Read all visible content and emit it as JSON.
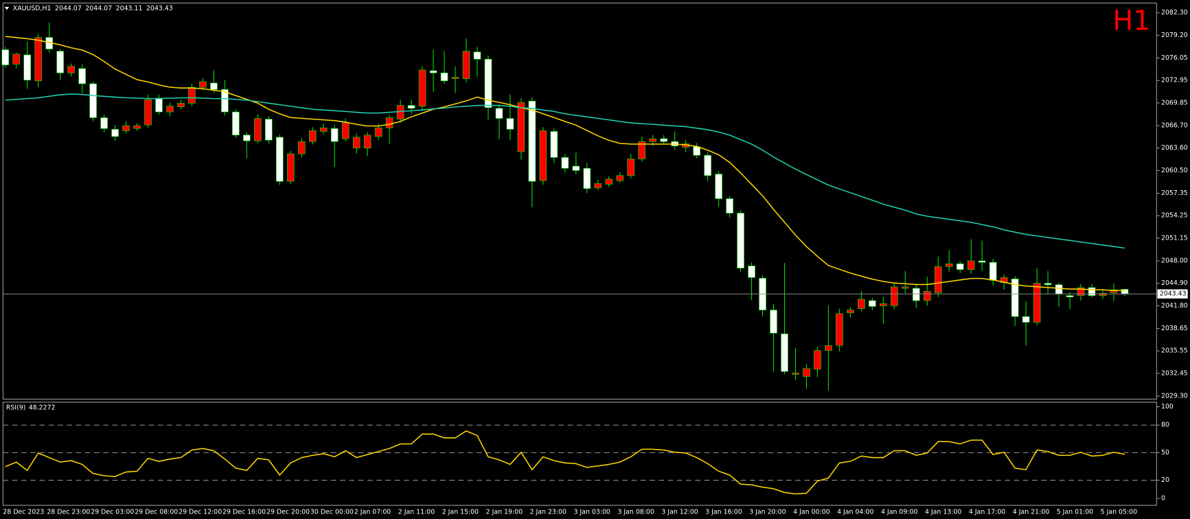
{
  "chart_data": [
    {
      "type": "candlestick",
      "title": "XAUUSD,H1",
      "watermark": "H1",
      "up_color": "#ff0000",
      "down_color": "#ffffff",
      "wick_color": "#00e000",
      "categories": [
        "28 Dec 2023",
        null,
        null,
        null,
        "28 Dec 23:00",
        null,
        null,
        null,
        "29 Dec 03:00",
        null,
        null,
        null,
        "29 Dec 08:00",
        null,
        null,
        null,
        "29 Dec 12:00",
        null,
        null,
        null,
        "29 Dec 16:00",
        null,
        null,
        null,
        "29 Dec 20:00",
        null,
        null,
        null,
        "30 Dec 00:00",
        null,
        null,
        null,
        "2 Jan 07:00",
        null,
        null,
        null,
        "2 Jan 11:00",
        null,
        null,
        null,
        "2 Jan 15:00",
        null,
        null,
        null,
        "2 Jan 19:00",
        null,
        null,
        null,
        "2 Jan 23:00",
        null,
        null,
        null,
        "3 Jan 03:00",
        null,
        null,
        null,
        "3 Jan 08:00",
        null,
        null,
        null,
        "3 Jan 12:00",
        null,
        null,
        null,
        "3 Jan 16:00",
        null,
        null,
        null,
        "3 Jan 20:00",
        null,
        null,
        null,
        "4 Jan 00:00",
        null,
        null,
        null,
        "4 Jan 04:00",
        null,
        null,
        null,
        "4 Jan 09:00",
        null,
        null,
        null,
        "4 Jan 13:00",
        null,
        null,
        null,
        "4 Jan 17:00",
        null,
        null,
        null,
        "4 Jan 21:00",
        null,
        null,
        null,
        "5 Jan 01:00",
        null,
        null,
        null,
        "5 Jan 05:00",
        null,
        null
      ],
      "open": [
        2077.2,
        2075.2,
        2076.5,
        2072.9,
        2078.9,
        2077.0,
        2074.0,
        2074.6,
        2072.5,
        2067.8,
        2066.2,
        2066.0,
        2066.3,
        2066.8,
        2070.5,
        2068.6,
        2069.3,
        2069.8,
        2072.0,
        2072.6,
        2071.7,
        2068.6,
        2065.4,
        2064.6,
        2067.6,
        2065.1,
        2059.0,
        2062.8,
        2064.5,
        2065.9,
        2066.3,
        2064.9,
        2063.6,
        2063.6,
        2065.2,
        2066.4,
        2067.6,
        2069.5,
        2069.4,
        2074.3,
        2074.0,
        2073.2,
        2073.2,
        2076.9,
        2075.9,
        2069.1,
        2067.7,
        2063.1,
        2070.1,
        2059.1,
        2065.9,
        2062.3,
        2061.1,
        2060.8,
        2058.1,
        2058.6,
        2059.1,
        2059.8,
        2062.1,
        2064.5,
        2064.9,
        2064.5,
        2063.7,
        2063.8,
        2062.6,
        2060.0,
        2056.6,
        2054.6,
        2047.3,
        2045.6,
        2041.2,
        2037.9,
        2032.3,
        2032.0,
        2033.0,
        2035.6,
        2036.3,
        2040.8,
        2041.4,
        2042.5,
        2041.8,
        2041.8,
        2044.2,
        2044.2,
        2042.5,
        2043.6,
        2047.2,
        2047.6,
        2046.8,
        2048.0,
        2047.8,
        2045.0,
        2045.5,
        2040.3,
        2039.5,
        2044.9,
        2044.7,
        2043.2,
        2043.2,
        2044.3,
        2043.2,
        2043.6,
        2044.07
      ],
      "high": [
        2077.6,
        2076.8,
        2078.3,
        2079.4,
        2081.0,
        2077.3,
        2075.3,
        2075.2,
        2072.8,
        2068.2,
        2066.8,
        2067.3,
        2067.0,
        2071.0,
        2071.0,
        2069.9,
        2070.3,
        2072.5,
        2073.3,
        2074.4,
        2073.0,
        2069.0,
        2065.8,
        2068.3,
        2068.0,
        2065.5,
        2063.2,
        2065.0,
        2066.5,
        2067.0,
        2066.8,
        2067.7,
        2065.6,
        2065.8,
        2067.0,
        2068.2,
        2070.3,
        2070.3,
        2074.9,
        2077.2,
        2077.0,
        2074.9,
        2078.8,
        2077.6,
        2076.4,
        2069.6,
        2071.0,
        2070.5,
        2070.6,
        2066.5,
        2066.3,
        2062.8,
        2063.0,
        2061.5,
        2059.2,
        2059.7,
        2060.3,
        2062.8,
        2065.2,
        2065.4,
        2065.4,
        2065.9,
        2064.7,
        2064.3,
        2063.0,
        2060.4,
        2057.0,
        2055.0,
        2047.8,
        2046.0,
        2042.0,
        2047.7,
        2036.0,
        2033.8,
        2036.1,
        2041.8,
        2041.4,
        2041.6,
        2043.8,
        2042.9,
        2043.0,
        2045.0,
        2046.6,
        2044.8,
        2045.8,
        2048.6,
        2049.5,
        2048.0,
        2051.0,
        2050.8,
        2048.3,
        2046.1,
        2045.9,
        2042.4,
        2047.0,
        2046.6,
        2045.0,
        2043.7,
        2044.8,
        2044.8,
        2044.0,
        2044.9,
        2044.07
      ],
      "low": [
        2074.7,
        2074.6,
        2071.8,
        2072.0,
        2076.8,
        2073.0,
        2073.5,
        2071.2,
        2067.3,
        2065.8,
        2064.6,
        2065.6,
        2066.0,
        2066.4,
        2068.2,
        2068.0,
        2069.0,
        2069.4,
        2071.6,
        2071.2,
        2068.1,
        2065.0,
        2062.2,
        2064.2,
        2064.2,
        2058.5,
        2058.6,
        2062.3,
        2064.1,
        2065.5,
        2061.0,
        2064.5,
        2062.8,
        2062.5,
        2064.7,
        2064.2,
        2067.1,
        2068.3,
        2068.9,
        2071.4,
        2072.5,
        2071.2,
        2072.7,
        2073.5,
        2067.5,
        2064.8,
        2064.7,
        2062.0,
        2055.4,
        2058.5,
        2061.5,
        2060.2,
        2060.0,
        2057.4,
        2057.8,
        2058.2,
        2058.8,
        2059.4,
        2061.7,
        2063.9,
        2064.1,
        2063.4,
        2063.0,
        2062.2,
        2059.0,
        2055.5,
        2054.0,
        2046.5,
        2042.6,
        2040.3,
        2032.7,
        2032.3,
        2031.5,
        2030.3,
        2031.9,
        2030.1,
        2035.5,
        2040.2,
        2041.0,
        2041.2,
        2039.3,
        2041.3,
        2043.5,
        2041.5,
        2041.8,
        2043.0,
        2046.5,
        2046.3,
        2046.2,
        2046.6,
        2044.6,
        2044.0,
        2039.0,
        2036.3,
        2039.1,
        2043.5,
        2041.6,
        2041.3,
        2042.5,
        2042.9,
        2042.7,
        2042.4,
        2043.11
      ],
      "close": [
        2075.1,
        2076.6,
        2073.0,
        2078.9,
        2077.3,
        2074.0,
        2074.9,
        2072.5,
        2067.8,
        2066.3,
        2065.2,
        2066.7,
        2066.7,
        2070.3,
        2068.6,
        2069.4,
        2069.8,
        2072.0,
        2072.8,
        2071.7,
        2068.6,
        2065.4,
        2064.6,
        2067.7,
        2064.7,
        2059.0,
        2062.8,
        2064.5,
        2066.0,
        2066.4,
        2064.5,
        2067.1,
        2065.1,
        2065.4,
        2066.4,
        2067.8,
        2069.5,
        2069.1,
        2074.4,
        2074.0,
        2072.9,
        2073.4,
        2077.0,
        2075.9,
        2069.2,
        2067.7,
        2066.2,
        2069.9,
        2059.0,
        2066.0,
        2062.3,
        2060.8,
        2060.5,
        2058.0,
        2058.7,
        2059.3,
        2059.8,
        2062.1,
        2064.5,
        2064.9,
        2064.5,
        2063.9,
        2064.2,
        2062.6,
        2059.8,
        2056.6,
        2054.6,
        2047.0,
        2045.7,
        2041.2,
        2038.0,
        2032.7,
        2032.5,
        2033.1,
        2035.6,
        2036.3,
        2040.7,
        2041.2,
        2042.7,
        2041.7,
        2042.1,
        2044.4,
        2044.4,
        2042.5,
        2043.8,
        2047.2,
        2047.6,
        2046.8,
        2048.0,
        2047.8,
        2045.3,
        2045.7,
        2040.3,
        2039.5,
        2044.9,
        2044.7,
        2043.4,
        2043.0,
        2044.3,
        2043.2,
        2043.5,
        2044.0,
        2043.43
      ],
      "lines": [
        {
          "color": "#ffd700",
          "values": [
            2079.04,
            2078.89,
            2078.73,
            2078.52,
            2078.2,
            2077.89,
            2077.47,
            2077.16,
            2076.53,
            2075.58,
            2074.53,
            2073.8,
            2073.07,
            2072.75,
            2072.33,
            2072.02,
            2071.91,
            2071.91,
            2071.81,
            2071.6,
            2071.39,
            2070.86,
            2070.34,
            2069.81,
            2068.97,
            2068.34,
            2067.82,
            2067.71,
            2067.61,
            2067.5,
            2067.4,
            2067.19,
            2066.88,
            2066.66,
            2066.66,
            2066.88,
            2067.29,
            2067.92,
            2068.45,
            2068.97,
            2069.29,
            2069.71,
            2070.13,
            2070.65,
            2070.23,
            2069.92,
            2069.6,
            2069.18,
            2068.87,
            2068.34,
            2067.82,
            2067.29,
            2066.77,
            2066.03,
            2065.3,
            2064.67,
            2064.25,
            2064.15,
            2064.15,
            2064.15,
            2064.15,
            2064.15,
            2064.04,
            2063.83,
            2063.31,
            2062.68,
            2061.63,
            2060.16,
            2058.59,
            2057.01,
            2055.12,
            2053.34,
            2051.56,
            2049.98,
            2048.62,
            2047.36,
            2046.83,
            2046.31,
            2045.89,
            2045.47,
            2045.15,
            2044.94,
            2044.84,
            2044.73,
            2044.73,
            2044.94,
            2045.15,
            2045.36,
            2045.57,
            2045.57,
            2045.36,
            2045.05,
            2044.73,
            2044.52,
            2044.42,
            2044.31,
            2044.21,
            2044.1,
            2044.1,
            2044.0,
            2044.0,
            2043.89,
            2043.89
          ]
        },
        {
          "color": "#20d0b0",
          "values": [
            2070.23,
            2070.34,
            2070.44,
            2070.55,
            2070.76,
            2070.97,
            2071.07,
            2071.02,
            2070.86,
            2070.76,
            2070.65,
            2070.55,
            2070.5,
            2070.44,
            2070.44,
            2070.5,
            2070.55,
            2070.55,
            2070.5,
            2070.44,
            2070.44,
            2070.34,
            2070.23,
            2070.02,
            2069.81,
            2069.6,
            2069.39,
            2069.18,
            2068.97,
            2068.87,
            2068.76,
            2068.66,
            2068.55,
            2068.45,
            2068.45,
            2068.55,
            2068.66,
            2068.76,
            2068.87,
            2069.02,
            2069.13,
            2069.29,
            2069.39,
            2069.5,
            2069.5,
            2069.5,
            2069.39,
            2069.18,
            2069.08,
            2068.87,
            2068.66,
            2068.34,
            2068.13,
            2067.92,
            2067.71,
            2067.5,
            2067.29,
            2067.08,
            2066.98,
            2066.88,
            2066.77,
            2066.66,
            2066.56,
            2066.35,
            2066.14,
            2065.82,
            2065.4,
            2064.77,
            2064.15,
            2063.31,
            2062.36,
            2061.52,
            2060.68,
            2059.95,
            2059.21,
            2058.48,
            2057.95,
            2057.43,
            2056.9,
            2056.38,
            2055.85,
            2055.43,
            2055.01,
            2054.49,
            2054.17,
            2053.96,
            2053.75,
            2053.54,
            2053.34,
            2053.02,
            2052.71,
            2052.29,
            2051.97,
            2051.66,
            2051.45,
            2051.24,
            2051.03,
            2050.82,
            2050.61,
            2050.4,
            2050.19,
            2049.98,
            2049.77
          ]
        }
      ],
      "ylim": [
        2028.88,
        2083.66
      ],
      "yticks": [
        {
          "value": 2082.3,
          "label": "2082.30"
        },
        {
          "value": 2079.2,
          "label": "2079.20"
        },
        2076.05,
        2072.95,
        2069.85,
        {
          "value": 2066.7,
          "label": "2066.70"
        },
        {
          "value": 2063.6,
          "label": "2063.60"
        },
        {
          "value": 2060.5,
          "label": "2060.50"
        },
        2057.35,
        2054.25,
        2051.15,
        {
          "value": 2048,
          "label": "2048.00"
        },
        {
          "value": 2044.9,
          "label": "2044.90"
        },
        {
          "value": 2041.8,
          "label": "2041.80"
        },
        2038.65,
        2035.55,
        2032.45,
        {
          "value": 2029.3,
          "label": "2029.30"
        }
      ]
    },
    {
      "type": "line",
      "label": "RSI(9)",
      "color": "#ffd700",
      "values": [
        34.7,
        39.7,
        30.6,
        49.6,
        44.6,
        39.7,
        41.3,
        37.2,
        27.3,
        24.8,
        24.0,
        28.9,
        29.8,
        43.8,
        40.5,
        43.0,
        44.6,
        52.9,
        54.5,
        52.1,
        43.0,
        33.1,
        30.6,
        43.8,
        42.1,
        25.6,
        38.8,
        44.6,
        47.1,
        48.8,
        45.5,
        52.1,
        44.6,
        47.9,
        51.2,
        54.5,
        59.5,
        59.5,
        70.2,
        70.2,
        66.1,
        66.1,
        73.6,
        68.6,
        45.5,
        42.1,
        37.2,
        50.4,
        31.4,
        45.5,
        41.3,
        38.8,
        38.0,
        33.9,
        35.5,
        37.2,
        39.7,
        45.5,
        53.7,
        53.7,
        52.9,
        50.4,
        49.6,
        44.6,
        38.0,
        29.8,
        25.6,
        15.7,
        14.9,
        12.4,
        10.7,
        6.6,
        5.0,
        5.8,
        19.0,
        22.3,
        38.8,
        40.5,
        46.3,
        44.6,
        44.6,
        52.1,
        52.1,
        47.1,
        49.6,
        62.0,
        62.0,
        59.5,
        63.6,
        63.6,
        47.9,
        50.4,
        33.1,
        31.4,
        52.9,
        51.2,
        47.1,
        47.1,
        50.4,
        46.3,
        47.1,
        50.4,
        48.2272
      ],
      "ylim": [
        -7.4,
        105
      ],
      "yticks": [
        0,
        20,
        50,
        80,
        100
      ],
      "levels": [
        80,
        50,
        20
      ]
    }
  ]
}
